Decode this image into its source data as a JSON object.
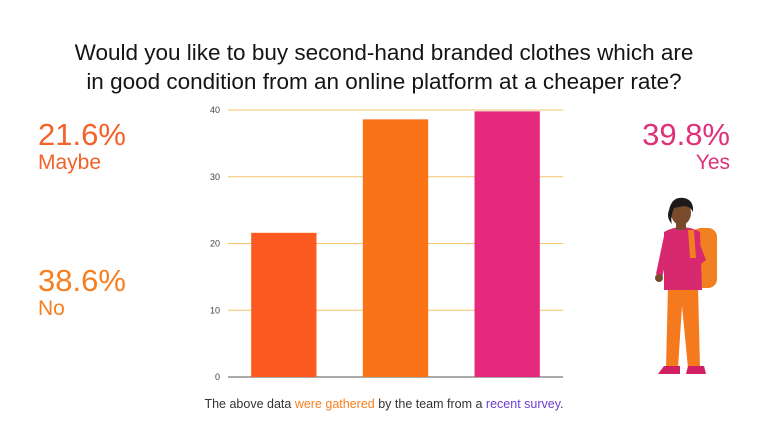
{
  "title": {
    "line1": "Would you like to buy second-hand branded clothes which are",
    "line2": "in good condition from an online platform at a cheaper rate?"
  },
  "stats": {
    "maybe": {
      "percent": "21.6%",
      "label": "Maybe",
      "color": "#f4622a"
    },
    "no": {
      "percent": "38.6%",
      "label": "No",
      "color": "#f77f1f"
    },
    "yes": {
      "percent": "39.8%",
      "label": "Yes",
      "color": "#e0307a"
    }
  },
  "footnote": {
    "part1": "The above data ",
    "part2": "were  gathered",
    "part3": " by the team from a ",
    "part4": "recent survey",
    "part5": "."
  },
  "chart_data": {
    "type": "bar",
    "categories": [
      "Maybe",
      "No",
      "Yes"
    ],
    "values": [
      21.6,
      38.6,
      39.8
    ],
    "colors": [
      "#fb5b21",
      "#fb7317",
      "#e5297d"
    ],
    "ylim": [
      0,
      40
    ],
    "yticks": [
      "0",
      "10",
      "20",
      "30",
      "40"
    ],
    "grid": true,
    "gridcolor": "#f5c26b",
    "show_category_labels": false
  }
}
